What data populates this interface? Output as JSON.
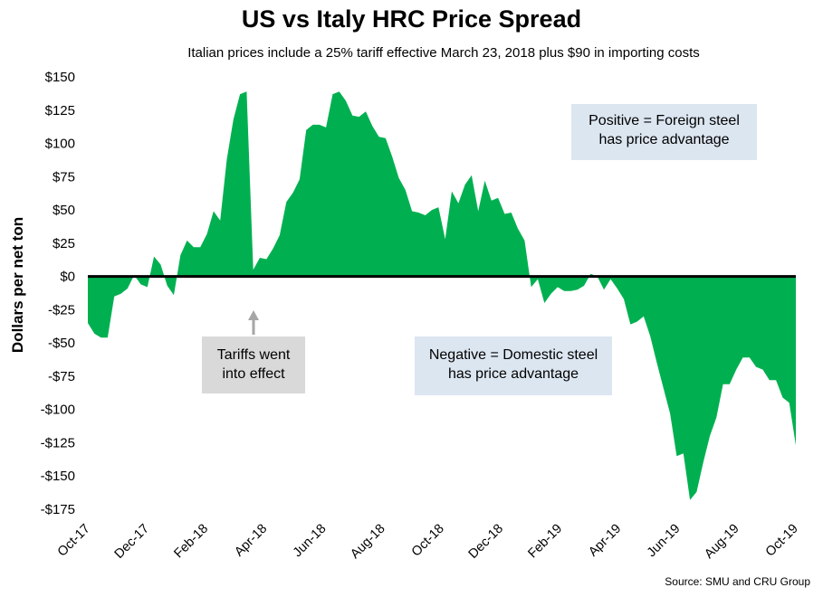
{
  "chart_data": {
    "type": "area",
    "title": "US vs Italy HRC Price Spread",
    "subtitle": "Italian prices include a 25% tariff effective March 23, 2018 plus $90 in importing costs",
    "ylabel": "Dollars per net ton",
    "xlabel": "",
    "ylim": [
      -175,
      150
    ],
    "y_ticks": [
      150,
      125,
      100,
      75,
      50,
      25,
      0,
      -25,
      -50,
      -75,
      -100,
      -125,
      -150,
      -175
    ],
    "y_tick_labels": [
      "$150",
      "$125",
      "$100",
      "$75",
      "$50",
      "$25",
      "$0",
      "-$25",
      "-$50",
      "-$75",
      "-$100",
      "-$125",
      "-$150",
      "-$175"
    ],
    "x_tick_labels": [
      "Oct-17",
      "Dec-17",
      "Feb-18",
      "Apr-18",
      "Jun-18",
      "Aug-18",
      "Oct-18",
      "Dec-18",
      "Feb-19",
      "Apr-19",
      "Jun-19",
      "Aug-19",
      "Oct-19"
    ],
    "series": [
      {
        "name": "US vs Italy HRC price spread",
        "color": "#00b050",
        "values": [
          -35,
          -43,
          -46,
          -46,
          -15,
          -13,
          -9,
          1,
          -6,
          -8,
          15,
          9,
          -7,
          -14,
          16,
          27,
          22,
          22,
          32,
          49,
          42,
          88,
          118,
          137,
          139,
          5,
          14,
          13,
          21,
          31,
          56,
          63,
          73,
          110,
          114,
          114,
          112,
          137,
          139,
          132,
          121,
          120,
          124,
          113,
          105,
          104,
          90,
          74,
          65,
          49,
          48,
          46,
          50,
          52,
          28,
          64,
          55,
          69,
          76,
          49,
          72,
          57,
          59,
          47,
          48,
          36,
          27,
          -8,
          -2,
          -20,
          -13,
          -8,
          -11,
          -11,
          -10,
          -7,
          2,
          0,
          -10,
          -2,
          -9,
          -17,
          -36,
          -34,
          -30,
          -45,
          -65,
          -84,
          -103,
          -135,
          -133,
          -168,
          -162,
          -140,
          -120,
          -106,
          -81,
          -81,
          -70,
          -61,
          -61,
          -68,
          -70,
          -78,
          -78,
          -91,
          -95,
          -127
        ]
      }
    ],
    "annotations": [
      {
        "text_line1": "Positive = Foreign steel",
        "text_line2": "has price advantage"
      },
      {
        "text_line1": "Negative = Domestic steel",
        "text_line2": "has price advantage"
      },
      {
        "text_line1": "Tariffs went",
        "text_line2": "into effect"
      }
    ],
    "source": "Source: SMU and CRU Group"
  }
}
